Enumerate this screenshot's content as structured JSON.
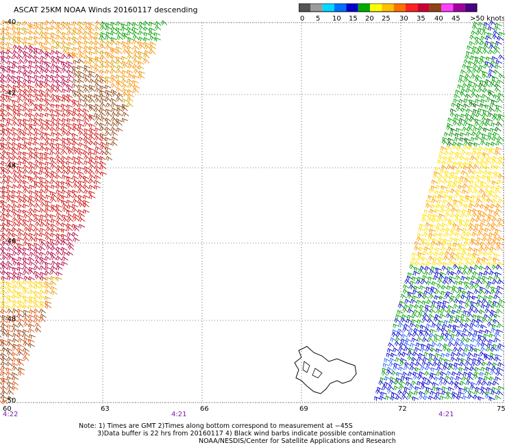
{
  "title": "ASCAT 25KM NOAA Winds 20160117 descending",
  "colorbar": {
    "colors": [
      "#555555",
      "#9c9c9c",
      "#00d8ff",
      "#0070ff",
      "#0000d0",
      "#00aa00",
      "#ffff00",
      "#ffc000",
      "#ff7000",
      "#ff2020",
      "#cc0030",
      "#8b4513",
      "#ff40ff",
      "#a000a0",
      "#4b0082"
    ],
    "labels": [
      "0",
      "5",
      "10",
      "15",
      "20",
      "25",
      "30",
      "35",
      "40",
      "45",
      ">50 knots"
    ]
  },
  "lat_labels": [
    "-40",
    "-42",
    "-44",
    "-46",
    "-48",
    "-50"
  ],
  "lon_labels": [
    "60",
    "63",
    "66",
    "69",
    "72",
    "75"
  ],
  "times": {
    "left": "4:22",
    "center": "4:21",
    "right": "4:21"
  },
  "notes": {
    "line1": "Note: 1) Times are GMT 2)Times along bottom correspond to measurement at −45S",
    "line2": "3)Data buffer is 22 hrs from 20160117 4) Black wind barbs indicate possible contamination",
    "line3": "NOAA/NESDIS/Center for Satellite Applications and Research"
  },
  "swaths": {
    "west": {
      "colors": [
        "#ff8c00",
        "#d2a000",
        "#cc1010",
        "#b00040",
        "#8b4513",
        "#ffd200",
        "#e05010"
      ]
    },
    "east": {
      "colors": [
        "#00a000",
        "#0000cc",
        "#ffe000",
        "#ff9000",
        "#2a60ff",
        "#006000"
      ]
    }
  }
}
